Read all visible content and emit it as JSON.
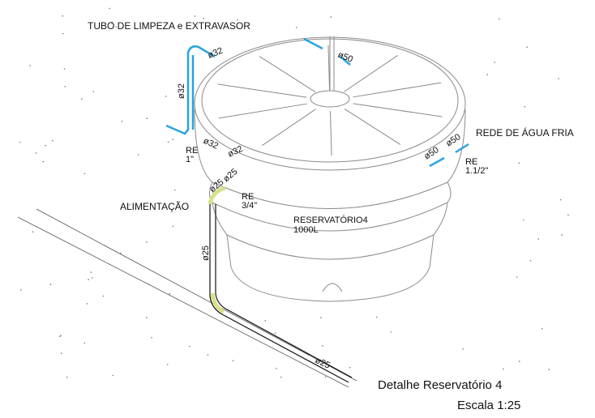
{
  "labels": {
    "pipe_title": "TUBO DE LIMPEZA e EXTRAVASOR",
    "feed": "ALIMENTAÇÃO",
    "cold_water": "REDE DE ÁGUA FRIA",
    "tank_name": "RESERVATÓRIO4",
    "tank_capacity": "1000L",
    "caption_title": "Detalhe Reservatório 4",
    "caption_scale": "Escala 1:25"
  },
  "dimensions": [
    "ø32",
    "ø32",
    "ø32",
    "ø32",
    "ø50",
    "ø50",
    "ø50",
    "ø25",
    "ø25",
    "ø25",
    "ø25"
  ],
  "fittings": [
    {
      "code": "RE",
      "size": "1\""
    },
    {
      "code": "RE",
      "size": "1.1/2\""
    },
    {
      "code": "RE",
      "size": "3/4\""
    }
  ]
}
